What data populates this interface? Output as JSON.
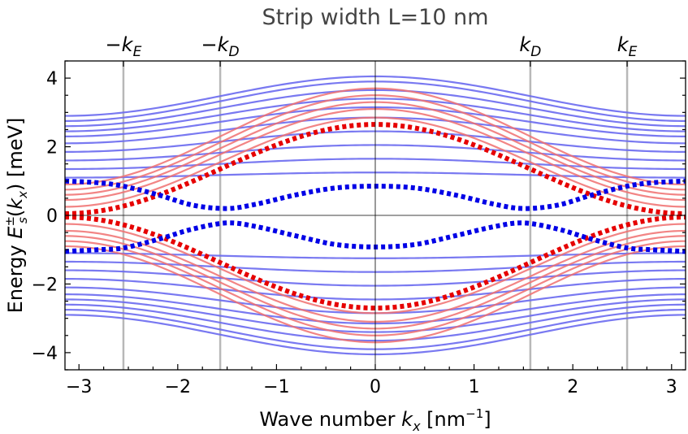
{
  "chart_data": {
    "type": "line",
    "title": "Strip width L=10 nm",
    "xlabel": {
      "prefix": "Wave number ",
      "var": "k",
      "sub": "x",
      "unit_open": " [nm",
      "unit_sup": "−1",
      "unit_close": "]"
    },
    "ylabel": {
      "prefix": "Energy ",
      "var": "E",
      "sup": "±",
      "sub": "s",
      "arg_open": "(",
      "arg_var": "k",
      "arg_sub": "x",
      "arg_close": ")",
      "unit": " [meV]"
    },
    "xlim": [
      -3.14159,
      3.14159
    ],
    "ylim": [
      -4.5,
      4.5
    ],
    "xticks": [
      -3,
      -2,
      -1,
      0,
      1,
      2,
      3
    ],
    "xtick_labels": [
      "−3",
      "−2",
      "−1",
      "0",
      "1",
      "2",
      "3"
    ],
    "yticks": [
      -4,
      -2,
      0,
      2,
      4
    ],
    "ytick_labels": [
      "−4",
      "−2",
      "0",
      "2",
      "4"
    ],
    "reference_lines": [
      {
        "name": "-kE",
        "x": -2.55,
        "label_sign": "−",
        "label_var": "k",
        "label_sub": "E"
      },
      {
        "name": "-kD",
        "x": -1.57,
        "label_sign": "−",
        "label_var": "k",
        "label_sub": "D"
      },
      {
        "name": "kD",
        "x": 1.57,
        "label_sign": "",
        "label_var": "k",
        "label_sub": "D"
      },
      {
        "name": "kE",
        "x": 2.55,
        "label_sign": "",
        "label_var": "k",
        "label_sub": "E"
      }
    ],
    "colors": {
      "blue_band": "#6a6af0",
      "red_band": "#f07070",
      "blue_dotted": "#0000e6",
      "red_dotted": "#e60000",
      "reference": "#b8b8b8",
      "zero_line": "#000000"
    },
    "blue_bands": [
      {
        "edge": 2.9,
        "center": 4.05
      },
      {
        "edge": 2.75,
        "center": 3.9
      },
      {
        "edge": 2.6,
        "center": 3.65
      },
      {
        "edge": 2.45,
        "center": 3.4
      },
      {
        "edge": 2.3,
        "center": 3.15
      },
      {
        "edge": 2.1,
        "center": 2.85
      },
      {
        "edge": 1.85,
        "center": 2.45
      },
      {
        "edge": 1.6,
        "center": 2.05
      },
      {
        "edge": 1.35,
        "center": 1.65
      },
      {
        "edge": 1.1,
        "center": 1.25
      },
      {
        "edge": -1.1,
        "center": -1.25
      },
      {
        "edge": -1.35,
        "center": -1.65
      },
      {
        "edge": -1.6,
        "center": -2.05
      },
      {
        "edge": -1.85,
        "center": -2.45
      },
      {
        "edge": -2.1,
        "center": -2.85
      },
      {
        "edge": -2.3,
        "center": -3.15
      },
      {
        "edge": -2.45,
        "center": -3.4
      },
      {
        "edge": -2.6,
        "center": -3.65
      },
      {
        "edge": -2.75,
        "center": -3.9
      },
      {
        "edge": -2.9,
        "center": -4.05
      }
    ],
    "red_bands": [
      {
        "edge": 0.25,
        "center": 2.85
      },
      {
        "edge": 0.45,
        "center": 3.1
      },
      {
        "edge": 0.6,
        "center": 3.3
      },
      {
        "edge": 0.75,
        "center": 3.5
      },
      {
        "edge": 0.9,
        "center": 3.7
      },
      {
        "edge": -0.25,
        "center": -2.85
      },
      {
        "edge": -0.45,
        "center": -3.1
      },
      {
        "edge": -0.6,
        "center": -3.3
      },
      {
        "edge": -0.75,
        "center": -3.5
      },
      {
        "edge": -0.9,
        "center": -3.7
      }
    ],
    "red_dotted": [
      {
        "edge": 0.05,
        "center": 2.65
      },
      {
        "edge": -0.05,
        "center": -2.7
      }
    ],
    "blue_dotted": [
      {
        "name": "upper",
        "points": [
          [
            -3.14,
            1.0
          ],
          [
            -2.8,
            0.95
          ],
          [
            -2.55,
            0.85
          ],
          [
            -2.2,
            0.6
          ],
          [
            -1.85,
            0.3
          ],
          [
            -1.5,
            0.2
          ],
          [
            -1.2,
            0.33
          ],
          [
            -0.8,
            0.6
          ],
          [
            -0.4,
            0.8
          ],
          [
            0,
            0.85
          ],
          [
            0.4,
            0.8
          ],
          [
            0.8,
            0.6
          ],
          [
            1.2,
            0.33
          ],
          [
            1.5,
            0.2
          ],
          [
            1.85,
            0.3
          ],
          [
            2.2,
            0.6
          ],
          [
            2.55,
            0.85
          ],
          [
            2.8,
            0.95
          ],
          [
            3.14,
            1.0
          ]
        ]
      },
      {
        "name": "lower",
        "points": [
          [
            -3.14,
            -1.05
          ],
          [
            -2.8,
            -1.0
          ],
          [
            -2.55,
            -0.95
          ],
          [
            -2.2,
            -0.7
          ],
          [
            -1.85,
            -0.4
          ],
          [
            -1.5,
            -0.22
          ],
          [
            -1.2,
            -0.33
          ],
          [
            -0.8,
            -0.6
          ],
          [
            -0.4,
            -0.85
          ],
          [
            0,
            -0.92
          ],
          [
            0.4,
            -0.85
          ],
          [
            0.8,
            -0.6
          ],
          [
            1.2,
            -0.33
          ],
          [
            1.5,
            -0.22
          ],
          [
            1.85,
            -0.4
          ],
          [
            2.2,
            -0.7
          ],
          [
            2.55,
            -0.95
          ],
          [
            2.8,
            -1.0
          ],
          [
            3.14,
            -1.05
          ]
        ]
      }
    ]
  }
}
